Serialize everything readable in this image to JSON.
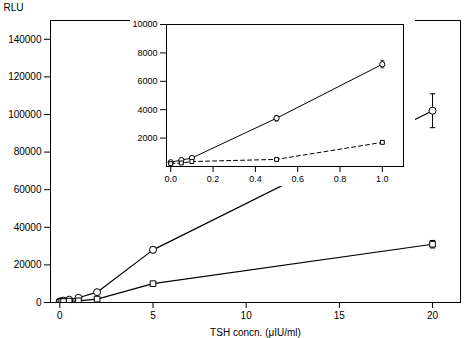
{
  "chart_data": [
    {
      "type": "line",
      "x": [
        0,
        0.1,
        0.2,
        0.5,
        1,
        2,
        5,
        20
      ],
      "series": [
        {
          "values": [
            500,
            800,
            1000,
            1500,
            2500,
            5500,
            28000,
            102000
          ],
          "yerr": [
            0,
            0,
            0,
            0,
            0,
            0,
            1500,
            9000
          ],
          "color": "black",
          "marker": "circle",
          "line_style": "solid"
        },
        {
          "values": [
            300,
            400,
            500,
            700,
            900,
            1800,
            10000,
            31000
          ],
          "yerr": [
            0,
            0,
            0,
            0,
            0,
            0,
            800,
            2000
          ],
          "color": "black",
          "marker": "square",
          "line_style": "solid"
        }
      ],
      "xlabel": "TSH concn. (μIU/ml)",
      "ylabel": "RLU",
      "xlim": [
        -0.5,
        21.5
      ],
      "ylim": [
        0,
        150000
      ],
      "xticks": [
        0,
        5,
        10,
        15,
        20
      ],
      "yticks": [
        0,
        20000,
        40000,
        60000,
        80000,
        100000,
        120000,
        140000
      ]
    },
    {
      "type": "line",
      "x": [
        0,
        0.05,
        0.1,
        0.5,
        1.0
      ],
      "series": [
        {
          "values": [
            300,
            450,
            600,
            3400,
            7200
          ],
          "yerr": [
            50,
            50,
            80,
            200,
            250
          ],
          "color": "black",
          "marker": "circle",
          "line_style": "solid"
        },
        {
          "values": [
            200,
            250,
            350,
            500,
            1700
          ],
          "yerr": [
            30,
            30,
            50,
            60,
            100
          ],
          "color": "black",
          "marker": "square",
          "line_style": "dashed"
        }
      ],
      "xlim": [
        -0.02,
        1.1
      ],
      "ylim": [
        0,
        10000
      ],
      "xticks": [
        {
          "value": 0,
          "label": "0.0"
        },
        0.2,
        0.4,
        0.6,
        0.8,
        {
          "value": 1.0,
          "label": "1.0"
        }
      ],
      "yticks": [
        2000,
        4000,
        6000,
        8000,
        10000
      ]
    }
  ]
}
